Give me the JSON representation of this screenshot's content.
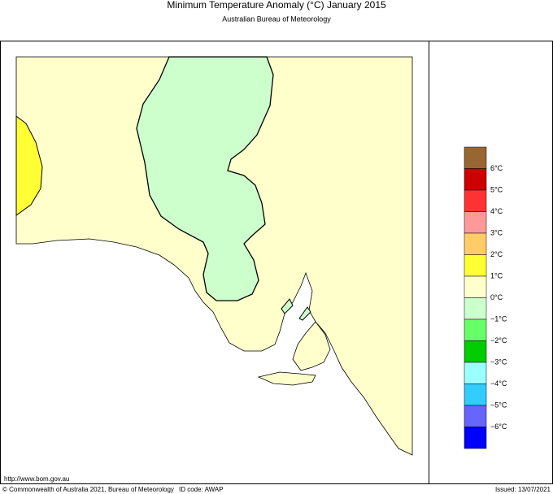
{
  "header": {
    "title": "Minimum Temperature Anomaly (°C)  January 2015",
    "subtitle": "Australian Bureau of Meteorology"
  },
  "legend": {
    "colors": [
      "#996633",
      "#cc0000",
      "#ff3333",
      "#ff9999",
      "#ffcc66",
      "#ffff33",
      "#ffffcc",
      "#ccffcc",
      "#66ff66",
      "#00cc00",
      "#99ffff",
      "#33ccff",
      "#6666ff",
      "#0000ff"
    ],
    "labels": [
      "6°C",
      "5°C",
      "4°C",
      "3°C",
      "2°C",
      "1°C",
      "0°C",
      "−1°C",
      "−2°C",
      "−3°C",
      "−4°C",
      "−5°C",
      "−6°C"
    ]
  },
  "footer": {
    "url": "http://www.bom.gov.au",
    "copyright": "© Commonwealth of Australia 2021, Bureau of Meteorology",
    "id_code": "ID code: AWAP",
    "issued": "Issued: 13/07/2021"
  }
}
